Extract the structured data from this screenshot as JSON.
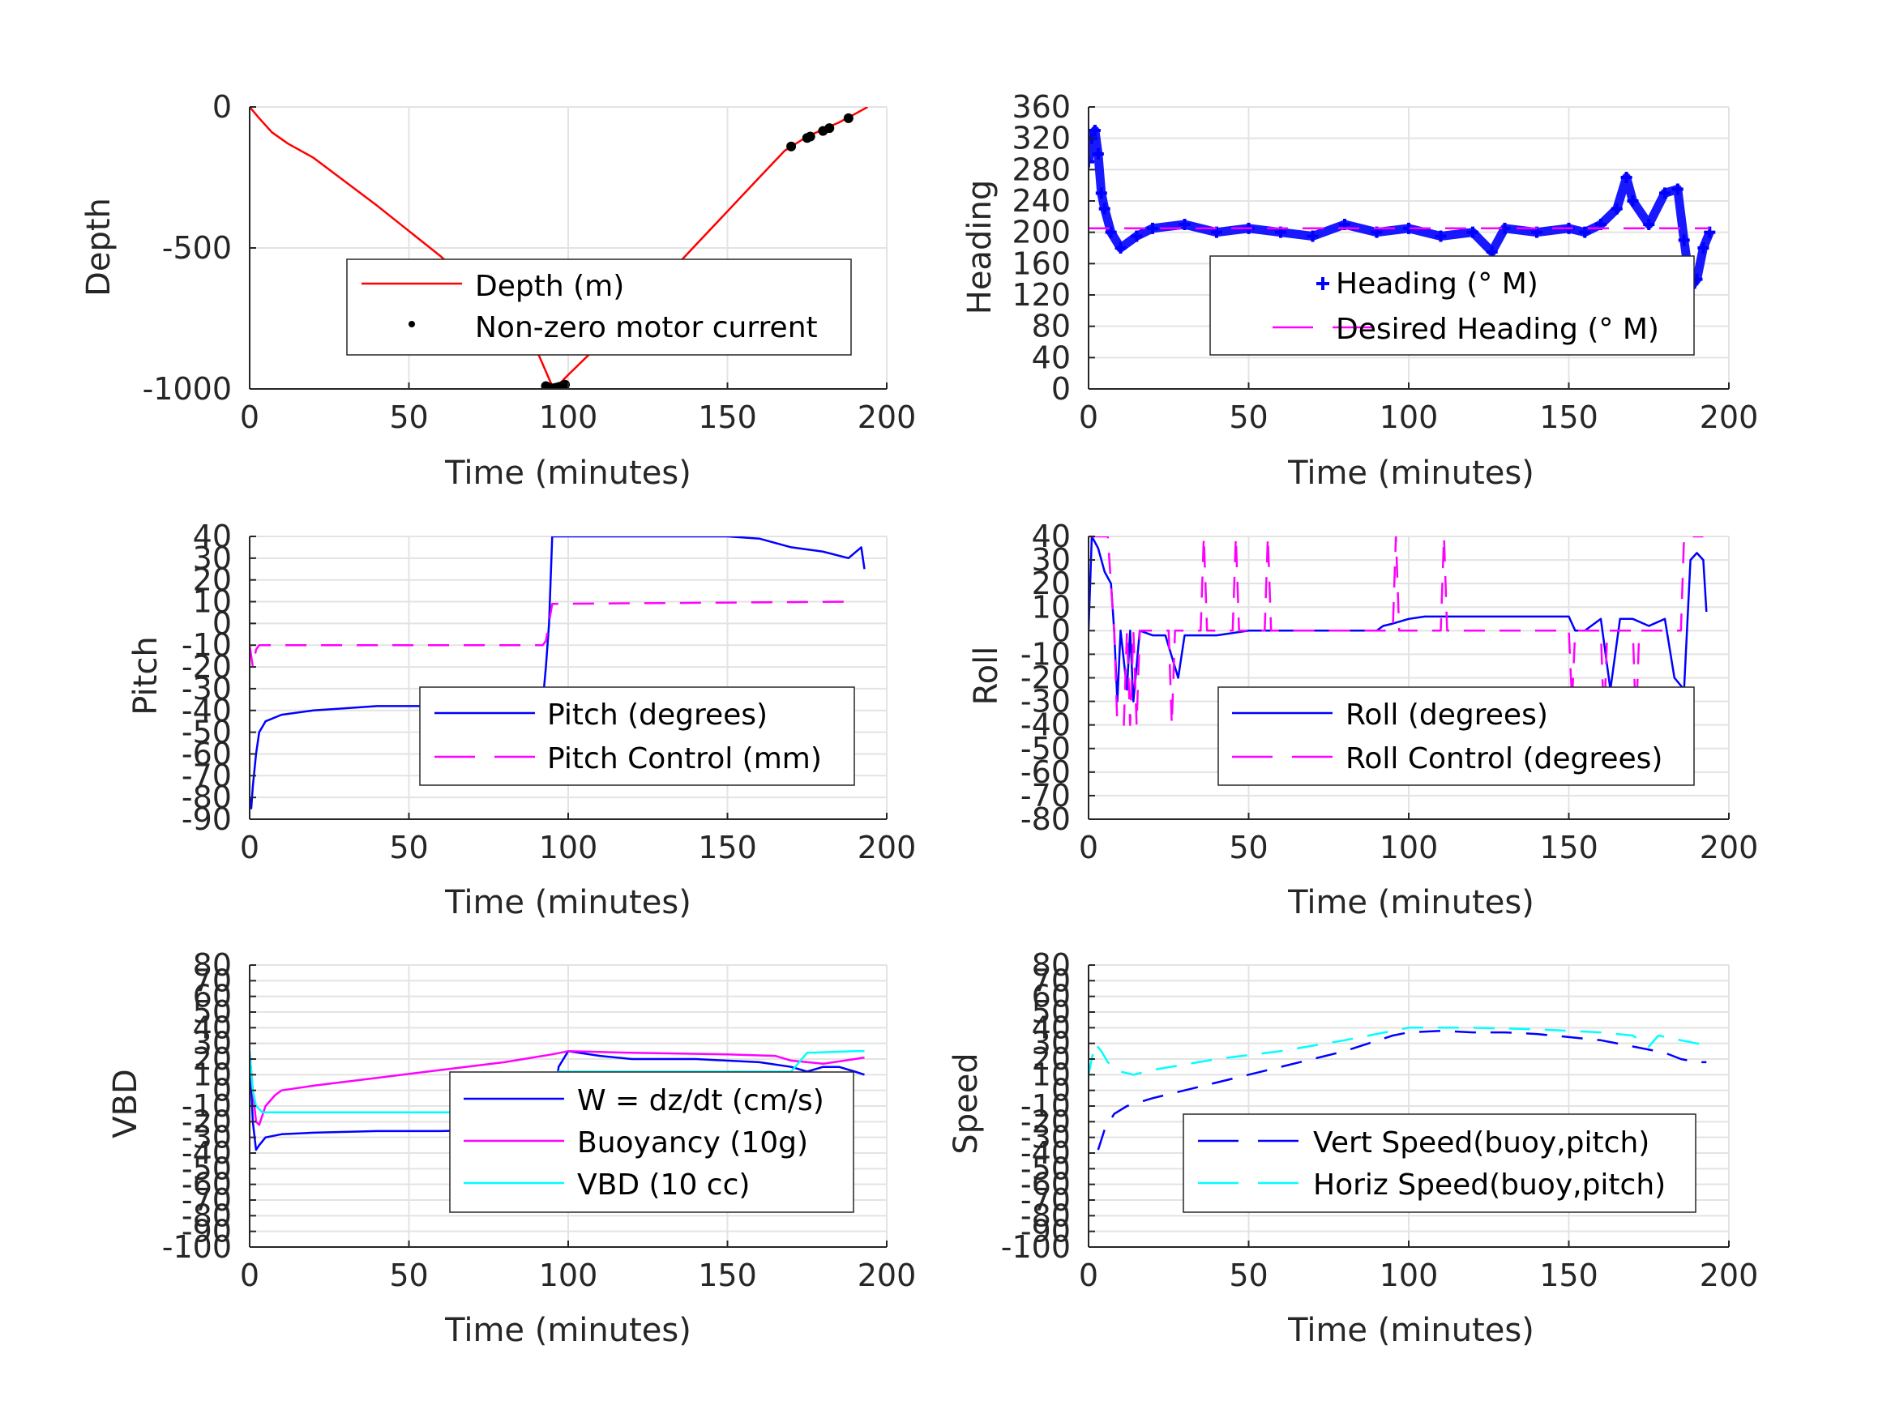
{
  "colors": {
    "red": "#ff0000",
    "blue": "#0000ff",
    "magenta": "#ff00ff",
    "cyan": "#00ffff",
    "black": "#000000",
    "grid": "#e3e3e3",
    "axis": "#262626"
  },
  "chart_data": [
    {
      "type": "line",
      "xlabel": "Time (minutes)",
      "ylabel": "Depth",
      "xlim": [
        0,
        200
      ],
      "ylim": [
        -1000,
        0
      ],
      "xticks": [
        "0",
        "50",
        "100",
        "150",
        "200"
      ],
      "yticks": [
        "-1000",
        "-500",
        "0"
      ],
      "ytick_values": [
        -1000,
        -500,
        0
      ],
      "grid": true,
      "legend_position": "center-right",
      "series": [
        {
          "name": "Depth (m)",
          "style": "solid",
          "color": "red",
          "x": [
            0,
            3,
            7,
            12,
            20,
            40,
            60,
            80,
            90,
            95,
            97,
            100,
            110,
            120,
            130,
            140,
            150,
            160,
            168,
            175,
            180,
            185,
            190,
            194
          ],
          "y": [
            0,
            -40,
            -90,
            -130,
            -180,
            -350,
            -530,
            -730,
            -860,
            -990,
            -985,
            -950,
            -840,
            -730,
            -610,
            -490,
            -370,
            -250,
            -155,
            -105,
            -80,
            -55,
            -25,
            0
          ]
        },
        {
          "name": "Non-zero motor current",
          "style": "dots",
          "color": "black",
          "x": [
            93,
            94,
            95,
            96,
            97,
            98,
            99,
            170,
            175,
            176,
            180,
            182,
            188
          ],
          "y": [
            -990,
            -995,
            -998,
            -996,
            -993,
            -990,
            -985,
            -140,
            -110,
            -105,
            -85,
            -75,
            -40
          ]
        }
      ]
    },
    {
      "type": "scatter",
      "xlabel": "Time (minutes)",
      "ylabel": "Heading",
      "xlim": [
        0,
        200
      ],
      "ylim": [
        0,
        360
      ],
      "xticks": [
        "0",
        "50",
        "100",
        "150",
        "200"
      ],
      "yticks": [
        "0",
        "40",
        "80",
        "120",
        "160",
        "200",
        "240",
        "280",
        "320",
        "360"
      ],
      "ytick_values": [
        0,
        40,
        80,
        120,
        160,
        200,
        240,
        280,
        320,
        360
      ],
      "grid": true,
      "legend_position": "lower-right",
      "series": [
        {
          "name": "Heading (° M)",
          "style": "plus",
          "color": "blue",
          "x": [
            0,
            1,
            2,
            3,
            4,
            5,
            7,
            10,
            15,
            20,
            30,
            40,
            50,
            60,
            70,
            80,
            90,
            100,
            110,
            120,
            126,
            130,
            140,
            150,
            155,
            160,
            165,
            168,
            170,
            175,
            180,
            184,
            186,
            188,
            190,
            192,
            194
          ],
          "y": [
            290,
            320,
            330,
            300,
            250,
            230,
            200,
            180,
            195,
            205,
            210,
            200,
            205,
            200,
            195,
            210,
            200,
            205,
            195,
            200,
            175,
            205,
            200,
            205,
            200,
            210,
            230,
            270,
            240,
            210,
            250,
            255,
            190,
            130,
            140,
            180,
            200
          ]
        },
        {
          "name": "Desired Heading (° M)",
          "style": "dashed",
          "color": "magenta",
          "x": [
            0,
            194
          ],
          "y": [
            205,
            205
          ]
        }
      ]
    },
    {
      "type": "line",
      "xlabel": "Time (minutes)",
      "ylabel": "Pitch",
      "xlim": [
        0,
        200
      ],
      "ylim": [
        -90,
        40
      ],
      "xticks": [
        "0",
        "50",
        "100",
        "150",
        "200"
      ],
      "yticks": [
        "-90",
        "-80",
        "-70",
        "-60",
        "-50",
        "-40",
        "-30",
        "-20",
        "-10",
        "0",
        "10",
        "20",
        "30",
        "40"
      ],
      "ytick_values": [
        -90,
        -80,
        -70,
        -60,
        -50,
        -40,
        -30,
        -20,
        -10,
        0,
        10,
        20,
        30,
        40
      ],
      "grid": true,
      "legend_position": "lower-right",
      "series": [
        {
          "name": "Pitch (degrees)",
          "style": "solid",
          "color": "blue",
          "x": [
            0,
            0.5,
            1,
            2,
            3,
            5,
            10,
            20,
            30,
            40,
            50,
            60,
            70,
            80,
            90,
            92,
            93,
            94,
            95,
            96,
            150,
            160,
            170,
            180,
            188,
            192,
            193
          ],
          "y": [
            -80,
            -85,
            -75,
            -60,
            -50,
            -45,
            -42,
            -40,
            -39,
            -38,
            -38,
            -38,
            -37,
            -37,
            -36,
            -36,
            -20,
            0,
            40,
            40,
            40,
            39,
            35,
            33,
            30,
            35,
            25
          ]
        },
        {
          "name": "Pitch Control (mm)",
          "style": "dashed",
          "color": "magenta",
          "x": [
            0,
            1,
            2,
            3,
            92,
            93,
            95,
            96,
            190
          ],
          "y": [
            -10,
            -20,
            -12,
            -10,
            -10,
            -8,
            9,
            9,
            10
          ]
        }
      ]
    },
    {
      "type": "line",
      "xlabel": "Time (minutes)",
      "ylabel": "Roll",
      "xlim": [
        0,
        200
      ],
      "ylim": [
        -80,
        40
      ],
      "xticks": [
        "0",
        "50",
        "100",
        "150",
        "200"
      ],
      "yticks": [
        "-80",
        "-70",
        "-60",
        "-50",
        "-40",
        "-30",
        "-20",
        "-10",
        "0",
        "10",
        "20",
        "30",
        "40"
      ],
      "ytick_values": [
        -80,
        -70,
        -60,
        -50,
        -40,
        -30,
        -20,
        -10,
        0,
        10,
        20,
        30,
        40
      ],
      "grid": true,
      "legend_position": "lower-right",
      "series": [
        {
          "name": "Roll (degrees)",
          "style": "solid",
          "color": "blue",
          "x": [
            0,
            1,
            3,
            5,
            7,
            8,
            9,
            10,
            12,
            13,
            14,
            16,
            20,
            24,
            28,
            30,
            35,
            40,
            50,
            60,
            70,
            80,
            90,
            92,
            95,
            100,
            105,
            110,
            120,
            130,
            140,
            150,
            152,
            155,
            160,
            163,
            166,
            170,
            175,
            180,
            183,
            186,
            188,
            190,
            192,
            193
          ],
          "y": [
            0,
            40,
            35,
            25,
            20,
            0,
            -30,
            0,
            -25,
            0,
            -30,
            0,
            -2,
            -2,
            -20,
            -2,
            -2,
            -2,
            0,
            0,
            0,
            0,
            0,
            2,
            3,
            5,
            6,
            6,
            6,
            6,
            6,
            6,
            0,
            0,
            5,
            -25,
            5,
            5,
            2,
            5,
            -20,
            -25,
            30,
            33,
            30,
            8
          ]
        },
        {
          "name": "Roll Control (degrees)",
          "style": "dashed",
          "color": "magenta",
          "x": [
            0,
            1,
            3,
            6,
            8,
            9,
            11,
            12,
            13,
            14,
            15,
            16,
            25,
            26,
            27,
            28,
            35,
            36,
            37,
            45,
            46,
            47,
            55,
            56,
            57,
            95,
            96,
            97,
            110,
            111,
            112,
            150,
            151,
            152,
            160,
            161,
            162,
            170,
            171,
            172,
            185,
            186,
            187,
            188,
            192
          ],
          "y": [
            40,
            40,
            40,
            40,
            0,
            -40,
            -40,
            0,
            -40,
            0,
            -40,
            0,
            0,
            -40,
            0,
            0,
            0,
            40,
            0,
            0,
            40,
            0,
            0,
            40,
            0,
            0,
            40,
            0,
            0,
            40,
            0,
            0,
            -30,
            0,
            0,
            -40,
            0,
            0,
            -40,
            0,
            0,
            40,
            40,
            40,
            40
          ]
        }
      ]
    },
    {
      "type": "line",
      "xlabel": "Time (minutes)",
      "ylabel": "VBD",
      "xlim": [
        0,
        200
      ],
      "ylim": [
        -100,
        80
      ],
      "xticks": [
        "0",
        "50",
        "100",
        "150",
        "200"
      ],
      "yticks": [
        "-100",
        "-90",
        "-80",
        "-70",
        "-60",
        "-50",
        "-40",
        "-30",
        "-20",
        "-10",
        "0",
        "10",
        "20",
        "30",
        "40",
        "50",
        "60",
        "70",
        "80"
      ],
      "ytick_values": [
        -100,
        -90,
        -80,
        -70,
        -60,
        -50,
        -40,
        -30,
        -20,
        -10,
        0,
        10,
        20,
        30,
        40,
        50,
        60,
        70,
        80
      ],
      "grid": true,
      "legend_position": "lower-right",
      "series": [
        {
          "name": "W = dz/dt (cm/s)",
          "style": "solid",
          "color": "blue",
          "x": [
            0,
            1,
            2,
            3,
            5,
            10,
            20,
            40,
            60,
            80,
            90,
            93,
            95,
            97,
            100,
            110,
            120,
            140,
            160,
            170,
            175,
            180,
            185,
            190,
            193
          ],
          "y": [
            25,
            -20,
            -38,
            -35,
            -30,
            -28,
            -27,
            -26,
            -26,
            -25,
            -24,
            -25,
            -15,
            15,
            25,
            22,
            20,
            20,
            18,
            15,
            12,
            15,
            15,
            12,
            10
          ]
        },
        {
          "name": "Buoyancy (10g)",
          "style": "solid",
          "color": "magenta",
          "x": [
            0,
            1,
            2,
            3,
            5,
            8,
            10,
            20,
            40,
            60,
            80,
            95,
            100,
            120,
            150,
            165,
            170,
            180,
            190,
            193
          ],
          "y": [
            25,
            0,
            -20,
            -22,
            -10,
            -3,
            0,
            3,
            8,
            13,
            18,
            23,
            25,
            24,
            23,
            22,
            19,
            17,
            20,
            21
          ]
        },
        {
          "name": "VBD (10 cc)",
          "style": "solid",
          "color": "cyan",
          "x": [
            0,
            1,
            2,
            3,
            4,
            10,
            90,
            95,
            97,
            100,
            170,
            175,
            190,
            193
          ],
          "y": [
            25,
            0,
            -10,
            -12,
            -14,
            -14,
            -14,
            10,
            12,
            12,
            12,
            24,
            25,
            25
          ]
        }
      ]
    },
    {
      "type": "line",
      "xlabel": "Time (minutes)",
      "ylabel": "Speed",
      "xlim": [
        0,
        200
      ],
      "ylim": [
        -100,
        80
      ],
      "xticks": [
        "0",
        "50",
        "100",
        "150",
        "200"
      ],
      "yticks": [
        "-100",
        "-90",
        "-80",
        "-70",
        "-60",
        "-50",
        "-40",
        "-30",
        "-20",
        "-10",
        "0",
        "10",
        "20",
        "30",
        "40",
        "50",
        "60",
        "70",
        "80"
      ],
      "ytick_values": [
        -100,
        -90,
        -80,
        -70,
        -60,
        -50,
        -40,
        -30,
        -20,
        -10,
        0,
        10,
        20,
        30,
        40,
        50,
        60,
        70,
        80
      ],
      "grid": true,
      "legend_position": "lower-right",
      "series": [
        {
          "name": "Vert Speed(buoy,pitch)",
          "style": "dashed",
          "color": "blue",
          "x": [
            3,
            5,
            8,
            12,
            20,
            40,
            60,
            80,
            95,
            100,
            110,
            120,
            130,
            140,
            150,
            160,
            170,
            180,
            185,
            190,
            193
          ],
          "y": [
            -38,
            -25,
            -15,
            -10,
            -5,
            5,
            15,
            25,
            35,
            37,
            38,
            37,
            37,
            36,
            34,
            32,
            28,
            24,
            20,
            18,
            18
          ]
        },
        {
          "name": "Horiz Speed(buoy,pitch)",
          "style": "dashed",
          "color": "cyan",
          "x": [
            0,
            2,
            4,
            6,
            10,
            14,
            20,
            40,
            60,
            80,
            100,
            110,
            120,
            140,
            160,
            170,
            175,
            178,
            185,
            190,
            193
          ],
          "y": [
            10,
            30,
            25,
            18,
            12,
            10,
            13,
            20,
            25,
            32,
            40,
            40,
            40,
            39,
            37,
            35,
            28,
            35,
            32,
            30,
            29
          ]
        }
      ]
    }
  ]
}
